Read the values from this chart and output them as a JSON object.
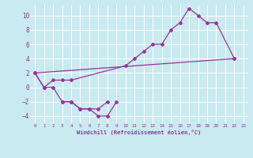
{
  "bg_color": "#c8eaf0",
  "grid_color": "#b0d8e0",
  "line_color": "#993399",
  "marker": "D",
  "marker_size": 2.0,
  "line_width": 0.9,
  "xlim": [
    -0.5,
    23.5
  ],
  "ylim": [
    -5,
    11.5
  ],
  "xticks": [
    0,
    1,
    2,
    3,
    4,
    5,
    6,
    7,
    8,
    9,
    10,
    11,
    12,
    13,
    14,
    15,
    16,
    17,
    18,
    19,
    20,
    21,
    22,
    23
  ],
  "yticks": [
    -4,
    -2,
    0,
    2,
    4,
    6,
    8,
    10
  ],
  "xlabel": "Windchill (Refroidissement éolien,°C)",
  "series": [
    {
      "x": [
        0,
        1,
        2,
        3,
        4,
        5,
        6,
        7,
        8
      ],
      "y": [
        2,
        0,
        0,
        -2,
        -2,
        -3,
        -3,
        -3,
        -2
      ]
    },
    {
      "x": [
        3,
        4,
        5,
        6,
        7,
        8,
        9
      ],
      "y": [
        -2,
        -2,
        -3,
        -3,
        -4,
        -4,
        -2
      ]
    },
    {
      "x": [
        0,
        1,
        2,
        3,
        4,
        10,
        11,
        12,
        13,
        14,
        15,
        16,
        17,
        18,
        19,
        20,
        22
      ],
      "y": [
        2,
        0,
        1,
        1,
        1,
        3,
        4,
        5,
        6,
        6,
        8,
        9,
        11,
        10,
        9,
        9,
        4
      ]
    },
    {
      "x": [
        0,
        22
      ],
      "y": [
        2,
        4
      ]
    }
  ]
}
